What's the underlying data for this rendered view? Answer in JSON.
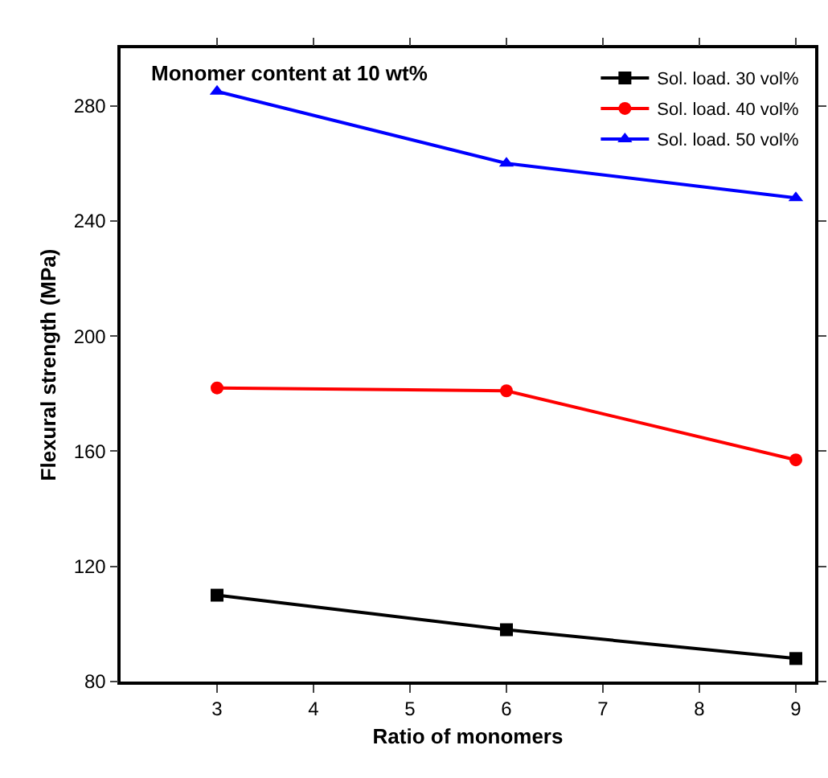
{
  "chart_data": {
    "type": "line",
    "title": "Monomer content at 10 wt%",
    "xlabel": "Ratio of monomers",
    "ylabel": "Flexural strength (MPa)",
    "x": [
      3,
      6,
      9
    ],
    "series": [
      {
        "name": "Sol. load. 30 vol%",
        "color": "#000000",
        "marker": "square",
        "values": [
          110,
          98,
          88
        ]
      },
      {
        "name": "Sol. load. 40 vol%",
        "color": "#ff0000",
        "marker": "circle",
        "values": [
          182,
          181,
          157
        ]
      },
      {
        "name": "Sol. load. 50 vol%",
        "color": "#0000ff",
        "marker": "triangle",
        "values": [
          285,
          260,
          248
        ]
      }
    ],
    "xlim": [
      2,
      9.2
    ],
    "xticks": [
      3,
      4,
      5,
      6,
      7,
      8,
      9
    ],
    "ylim": [
      80,
      300
    ],
    "yticks": [
      80,
      120,
      160,
      200,
      240,
      280
    ],
    "grid": false,
    "legend": "top right",
    "line_style": "solid"
  }
}
